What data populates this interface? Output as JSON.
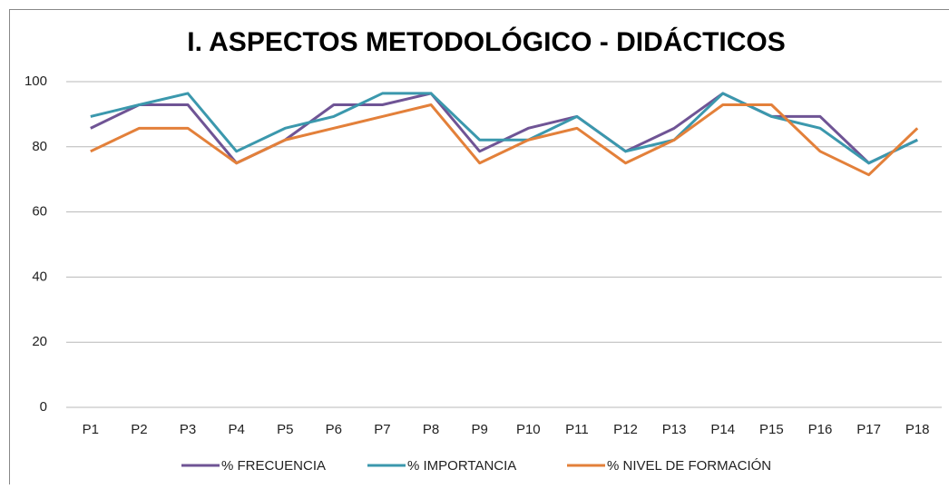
{
  "chart_data": {
    "type": "line",
    "title": "I. ASPECTOS METODOLÓGICO - DIDÁCTICOS",
    "categories": [
      "P1",
      "P2",
      "P3",
      "P4",
      "P5",
      "P6",
      "P7",
      "P8",
      "P9",
      "P10",
      "P11",
      "P12",
      "P13",
      "P14",
      "P15",
      "P16",
      "P17",
      "P18"
    ],
    "series": [
      {
        "name": "% FRECUENCIA",
        "color": "#6f5495",
        "values": [
          85.7,
          92.9,
          92.9,
          75,
          82.1,
          92.9,
          92.9,
          96.4,
          78.6,
          85.7,
          89.3,
          78.6,
          85.7,
          96.4,
          89.3,
          89.3,
          75,
          82.1
        ]
      },
      {
        "name": "% IMPORTANCIA",
        "color": "#3b98ad",
        "values": [
          89.3,
          92.9,
          96.4,
          78.6,
          85.7,
          89.3,
          96.4,
          96.4,
          82.1,
          82.1,
          89.3,
          78.6,
          82.1,
          96.4,
          89.3,
          85.7,
          75,
          82.1
        ]
      },
      {
        "name": "% NIVEL DE FORMACIÓN",
        "color": "#e3803a",
        "values": [
          78.6,
          85.7,
          85.7,
          75,
          82.1,
          85.7,
          89.3,
          92.9,
          75,
          82.1,
          85.7,
          75,
          82.1,
          92.9,
          92.9,
          78.6,
          71.4,
          85.7
        ]
      }
    ],
    "ylim": [
      0,
      100
    ],
    "yticks": [
      0,
      20,
      40,
      60,
      80,
      100
    ],
    "grid": true,
    "legend": "bottom"
  }
}
